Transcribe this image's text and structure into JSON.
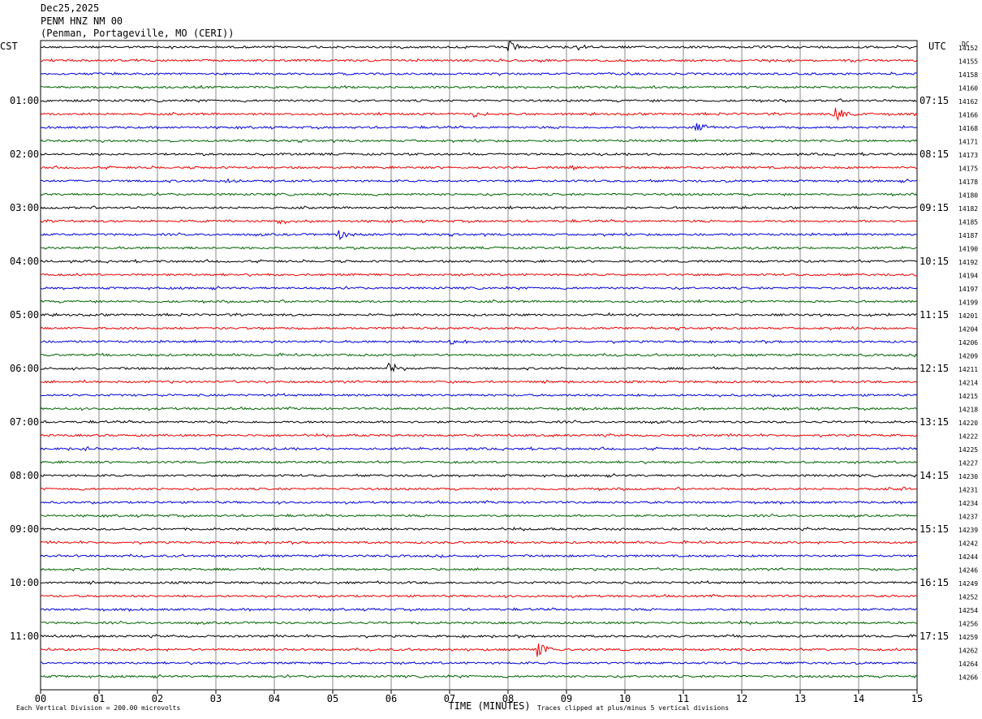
{
  "header": {
    "date": "Dec25,2025",
    "station": "PENM HNZ NM 00",
    "location": "(Penman, Portageville, MO (CERI))"
  },
  "chart_data": {
    "type": "line",
    "title": "",
    "left_timezone": "CST",
    "right_timezone": "UTC",
    "corner_label": "DC",
    "xlabel": "TIME (MINUTES)",
    "xlim": [
      0,
      15
    ],
    "x_ticks": [
      "00",
      "01",
      "02",
      "03",
      "04",
      "05",
      "06",
      "07",
      "08",
      "09",
      "10",
      "11",
      "12",
      "13",
      "14",
      "15"
    ],
    "left_hour_labels": [
      "01:00",
      "02:00",
      "03:00",
      "04:00",
      "05:00",
      "06:00",
      "07:00",
      "08:00",
      "09:00",
      "10:00",
      "11:00"
    ],
    "right_hour_labels": [
      "07:15",
      "08:15",
      "09:15",
      "10:15",
      "11:15",
      "12:15",
      "13:15",
      "14:15",
      "15:15",
      "16:15",
      "17:15"
    ],
    "trace_colors": [
      "#000000",
      "#ee0000",
      "#0000dd",
      "#006400"
    ],
    "dc_offsets": [
      "14152",
      "14155",
      "14158",
      "14160",
      "14162",
      "14166",
      "14168",
      "14171",
      "14173",
      "14175",
      "14178",
      "14180",
      "14182",
      "14185",
      "14187",
      "14190",
      "14192",
      "14194",
      "14197",
      "14199",
      "14201",
      "14204",
      "14206",
      "14209",
      "14211",
      "14214",
      "14215",
      "14218",
      "14220",
      "14222",
      "14225",
      "14227",
      "14230",
      "14231",
      "14234",
      "14237",
      "14239",
      "14242",
      "14244",
      "14246",
      "14249",
      "14252",
      "14254",
      "14256",
      "14259",
      "14262",
      "14264",
      "14266"
    ],
    "events": [
      {
        "trace": 0,
        "minute": 8.0,
        "amplitude": 9
      },
      {
        "trace": 0,
        "minute": 9.2,
        "amplitude": 4
      },
      {
        "trace": 5,
        "minute": 13.6,
        "amplitude": 10
      },
      {
        "trace": 5,
        "minute": 7.4,
        "amplitude": 4
      },
      {
        "trace": 6,
        "minute": 11.2,
        "amplitude": 8
      },
      {
        "trace": 9,
        "minute": 9.1,
        "amplitude": 4
      },
      {
        "trace": 10,
        "minute": 3.2,
        "amplitude": 4
      },
      {
        "trace": 13,
        "minute": 4.1,
        "amplitude": 5
      },
      {
        "trace": 14,
        "minute": 5.1,
        "amplitude": 6
      },
      {
        "trace": 22,
        "minute": 7.0,
        "amplitude": 4
      },
      {
        "trace": 24,
        "minute": 5.9,
        "amplitude": 12
      },
      {
        "trace": 30,
        "minute": 0.7,
        "amplitude": 4
      },
      {
        "trace": 33,
        "minute": 14.7,
        "amplitude": 4
      },
      {
        "trace": 45,
        "minute": 8.5,
        "amplitude": 9
      }
    ],
    "footer_left": "Each Vertical Division =  200.00 microvolts",
    "footer_right": "Traces clipped at plus/minus 5 vertical divisions"
  }
}
